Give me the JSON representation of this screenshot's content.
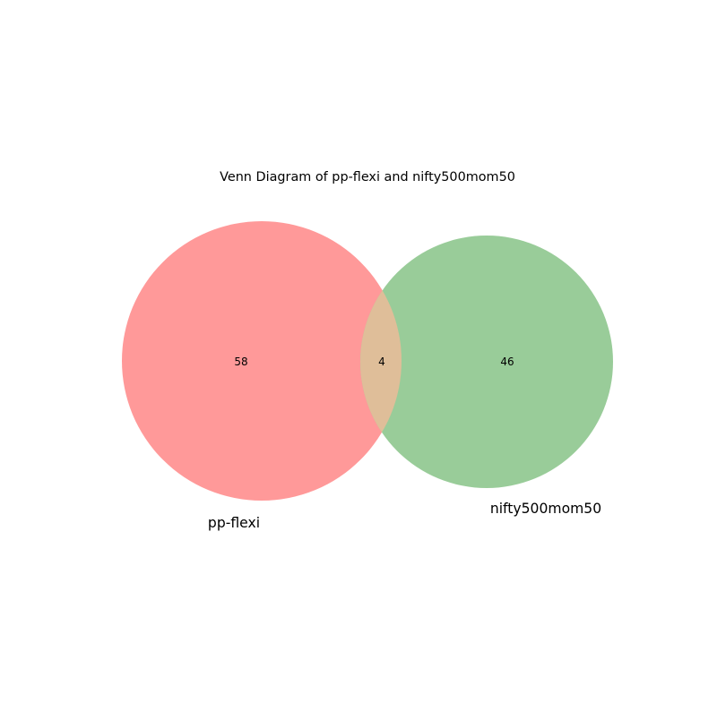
{
  "title": "Venn Diagram of pp-flexi and nifty500mom50",
  "sets": [
    {
      "name": "pp-flexi",
      "only_count": "58",
      "color": "#ff9999"
    },
    {
      "name": "nifty500mom50",
      "only_count": "46",
      "color": "#99cc99"
    }
  ],
  "intersection": {
    "count": "4",
    "color": "#dfbe99"
  }
}
